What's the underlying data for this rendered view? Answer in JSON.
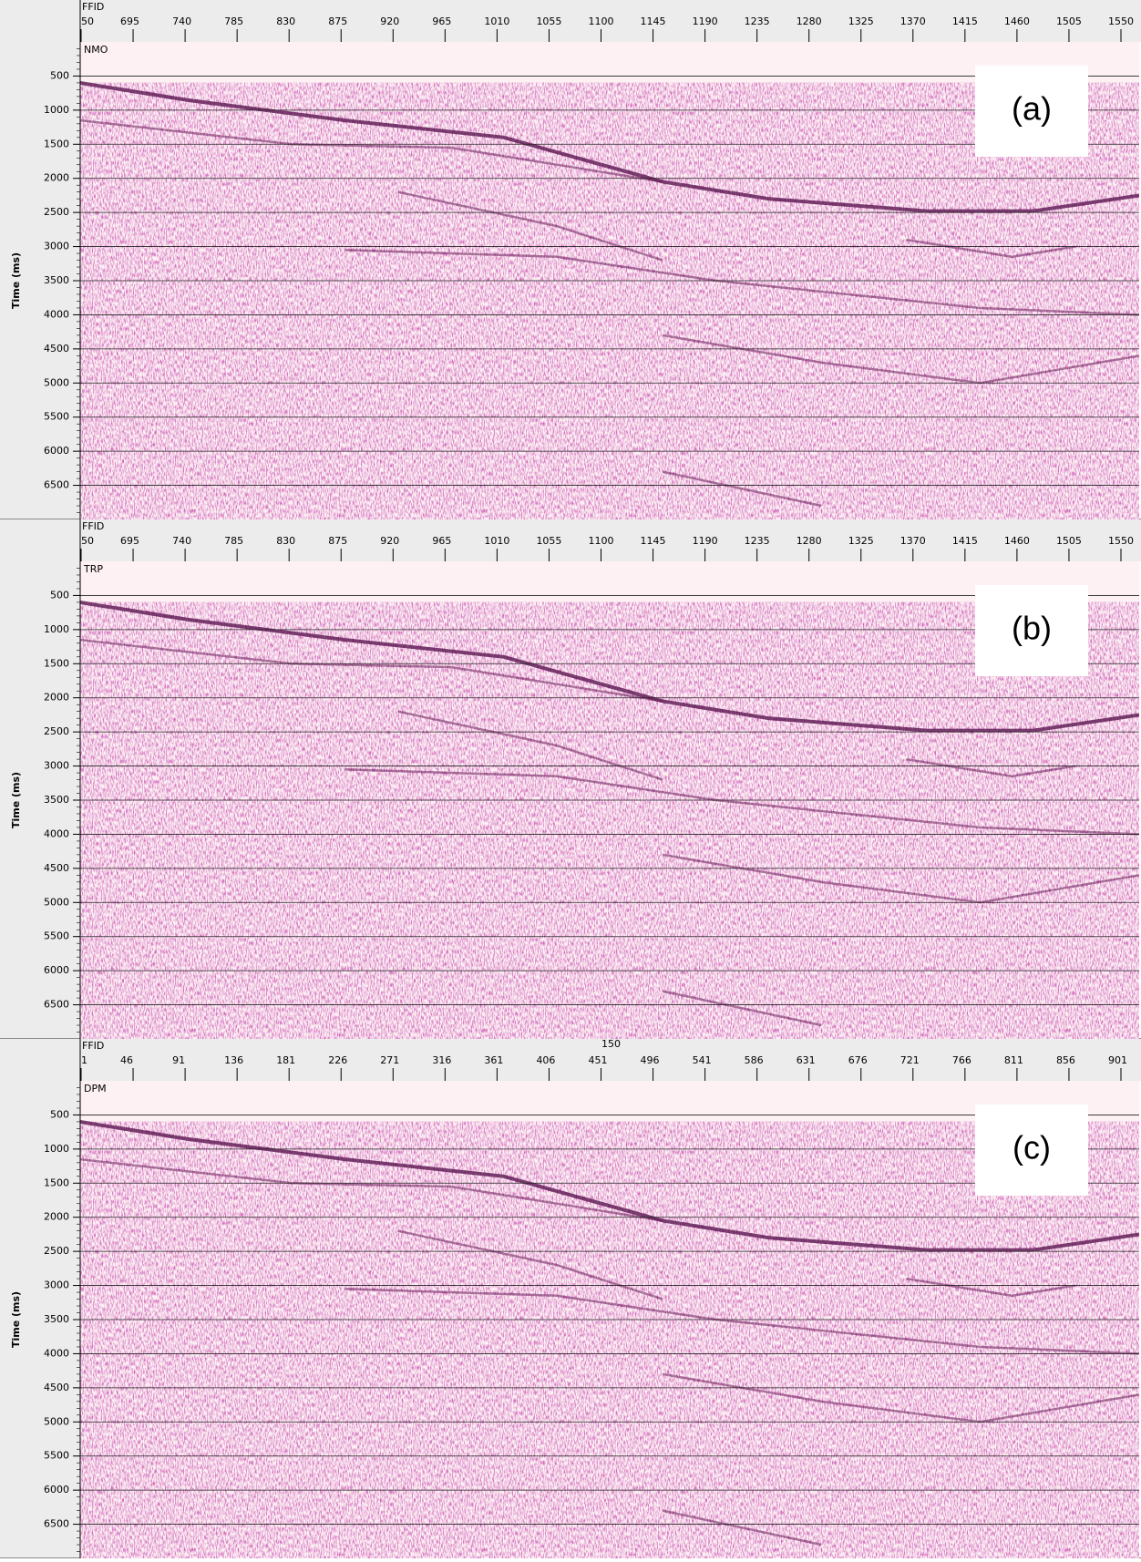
{
  "panels": [
    {
      "header_label": "FFID",
      "x_ticks": [
        "50",
        "695",
        "740",
        "785",
        "830",
        "875",
        "920",
        "965",
        "1010",
        "1055",
        "1100",
        "1145",
        "1190",
        "1235",
        "1280",
        "1325",
        "1370",
        "1415",
        "1460",
        "1505",
        "1550"
      ],
      "y_axis_label": "Time (ms)",
      "y_ticks": [
        "500",
        "1000",
        "1500",
        "2000",
        "2500",
        "3000",
        "3500",
        "4000",
        "4500",
        "5000",
        "5500",
        "6000",
        "6500"
      ],
      "section_label": "NMO",
      "panel_label": "(a)"
    },
    {
      "header_label": "FFID",
      "x_ticks": [
        "50",
        "695",
        "740",
        "785",
        "830",
        "875",
        "920",
        "965",
        "1010",
        "1055",
        "1100",
        "1145",
        "1190",
        "1235",
        "1280",
        "1325",
        "1370",
        "1415",
        "1460",
        "1505",
        "1550"
      ],
      "y_axis_label": "Time (ms)",
      "y_ticks": [
        "500",
        "1000",
        "1500",
        "2000",
        "2500",
        "3000",
        "3500",
        "4000",
        "4500",
        "5000",
        "5500",
        "6000",
        "6500"
      ],
      "section_label": "TRP",
      "panel_label": "(b)"
    },
    {
      "top_note": "150",
      "header_label": "FFID",
      "x_ticks": [
        "1",
        "46",
        "91",
        "136",
        "181",
        "226",
        "271",
        "316",
        "361",
        "406",
        "451",
        "496",
        "541",
        "586",
        "631",
        "676",
        "721",
        "766",
        "811",
        "856",
        "901"
      ],
      "y_axis_label": "Time (ms)",
      "y_ticks": [
        "500",
        "1000",
        "1500",
        "2000",
        "2500",
        "3000",
        "3500",
        "4000",
        "4500",
        "5000",
        "5500",
        "6000",
        "6500"
      ],
      "section_label": "DPM",
      "panel_label": "(c)"
    }
  ]
}
